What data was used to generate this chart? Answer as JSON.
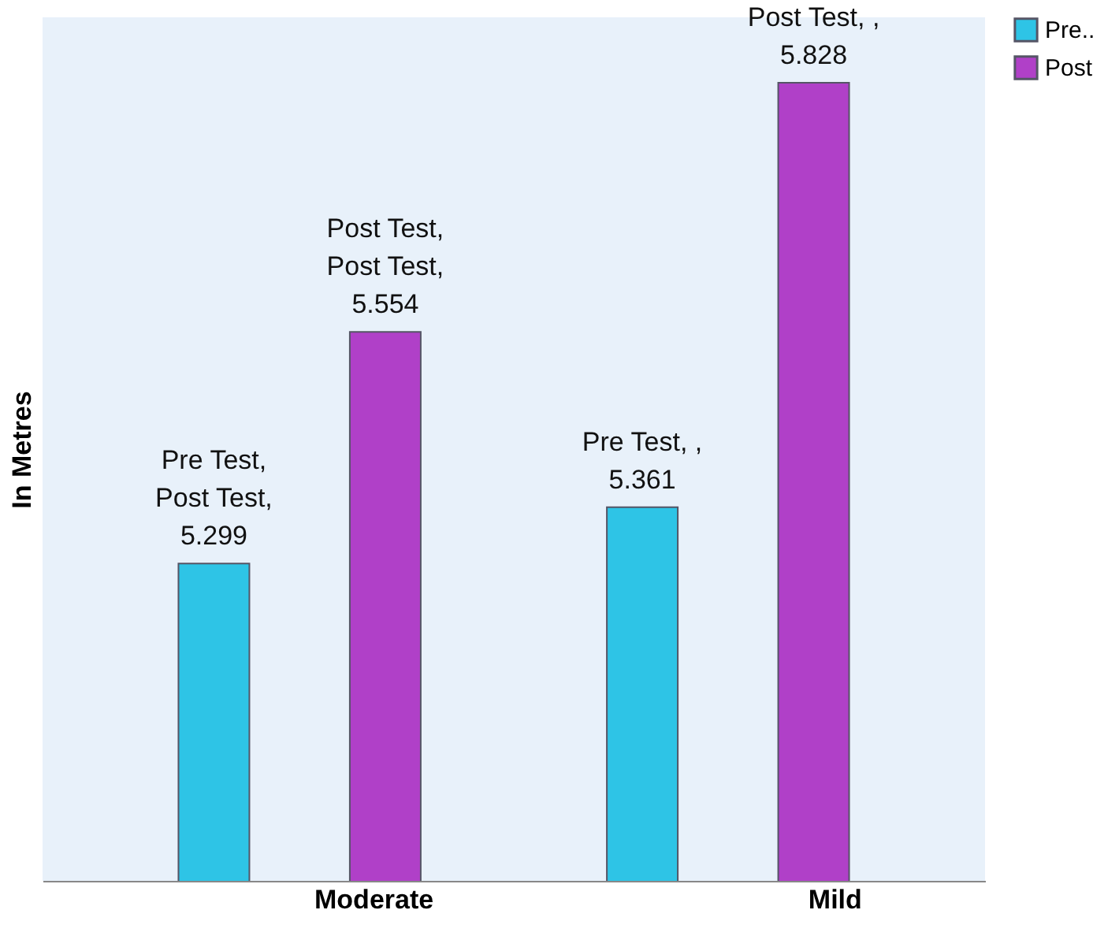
{
  "chart_data": {
    "type": "bar",
    "ylabel": "In Metres",
    "categories": [
      "Moderate",
      "Mild"
    ],
    "series": [
      {
        "name": "Pre..",
        "color": "#2ec4e6",
        "values": [
          5.299,
          5.361
        ],
        "value_labels": [
          "Pre Test, Post Test, 5.299",
          "Pre Test, , 5.361"
        ]
      },
      {
        "name": "Post",
        "color": "#b040c8",
        "values": [
          5.554,
          5.828
        ],
        "value_labels": [
          "Post Test, Post Test, 5.554",
          "Post Test, , 5.828"
        ]
      }
    ],
    "ylim": [
      4.95,
      5.9
    ],
    "tick_labels": "x",
    "grid": false,
    "legend": "right"
  }
}
